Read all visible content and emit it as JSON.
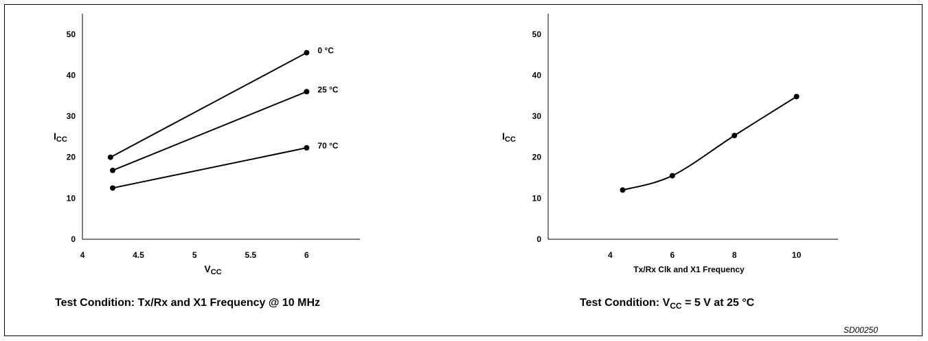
{
  "figure_id": "SD00250",
  "chart_data": [
    {
      "type": "line",
      "xlabel": {
        "main": "V",
        "sub": "CC"
      },
      "ylabel": {
        "main": "I",
        "sub": "CC"
      },
      "xlim": [
        4,
        6.5
      ],
      "ylim": [
        0,
        55
      ],
      "xticks": [
        4,
        4.5,
        5,
        5.5,
        6
      ],
      "xtick_labels": [
        "4",
        "4.5",
        "5",
        "5.5",
        "6"
      ],
      "yticks": [
        0,
        10,
        20,
        30,
        40,
        50
      ],
      "ytick_labels": [
        "0",
        "10",
        "20",
        "30",
        "40",
        "50"
      ],
      "grid": false,
      "curve": "straight",
      "series": [
        {
          "name": "0 °C",
          "x": [
            4.25,
            6
          ],
          "y": [
            20,
            45.5
          ]
        },
        {
          "name": "25 °C",
          "x": [
            4.27,
            6
          ],
          "y": [
            16.8,
            36
          ]
        },
        {
          "name": "70 °C",
          "x": [
            4.27,
            6
          ],
          "y": [
            12.5,
            22.3
          ]
        }
      ],
      "caption": "Test Condition:  Tx/Rx and X1 Frequency @ 10 MHz"
    },
    {
      "type": "line",
      "xlabel": {
        "main": "Tx/Rx Clk and X1 Frequency",
        "sub": ""
      },
      "ylabel": {
        "main": "I",
        "sub": "CC"
      },
      "xlim": [
        2,
        12
      ],
      "ylim": [
        0,
        55
      ],
      "xticks": [
        4,
        6,
        8,
        10
      ],
      "xtick_labels": [
        "4",
        "6",
        "8",
        "10"
      ],
      "yticks": [
        0,
        10,
        20,
        30,
        40,
        50
      ],
      "ytick_labels": [
        "0",
        "10",
        "20",
        "30",
        "40",
        "50"
      ],
      "grid": false,
      "curve": "smooth",
      "series": [
        {
          "x": [
            4.4,
            6,
            8,
            10
          ],
          "y": [
            12,
            15.5,
            25.3,
            34.8
          ]
        }
      ],
      "caption": {
        "prefix": "Test Condition: V",
        "sub": "CC",
        "suffix": " = 5 V at 25 °C"
      }
    }
  ]
}
